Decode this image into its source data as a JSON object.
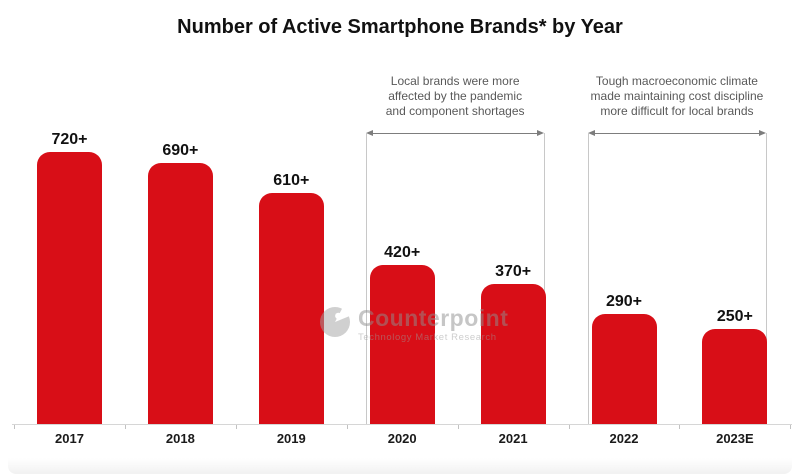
{
  "title": "Number of Active Smartphone Brands* by Year",
  "watermark": {
    "brand": "Counterpoint",
    "tagline": "Technology Market Research"
  },
  "chart_data": {
    "type": "bar",
    "categories": [
      "2017",
      "2018",
      "2019",
      "2020",
      "2021",
      "2022",
      "2023E"
    ],
    "values": [
      720,
      690,
      610,
      420,
      370,
      290,
      250
    ],
    "data_labels": [
      "720+",
      "690+",
      "610+",
      "420+",
      "370+",
      "290+",
      "250+"
    ],
    "bar_color": "#d80e17",
    "title": "Number of Active Smartphone Brands* by Year",
    "xlabel": "",
    "ylabel": "",
    "ylim": [
      0,
      760
    ],
    "grid": false,
    "legend": "none",
    "annotations": [
      {
        "lines": [
          "Local brands were more",
          "affected by the pandemic",
          "and component shortages"
        ],
        "span_categories": [
          "2020",
          "2021"
        ],
        "span_start": 3,
        "span_end": 4
      },
      {
        "lines": [
          "Tough macroeconomic climate",
          "made maintaining cost discipline",
          "more difficult for local brands"
        ],
        "span_categories": [
          "2022",
          "2023E"
        ],
        "span_start": 5,
        "span_end": 6
      }
    ]
  }
}
